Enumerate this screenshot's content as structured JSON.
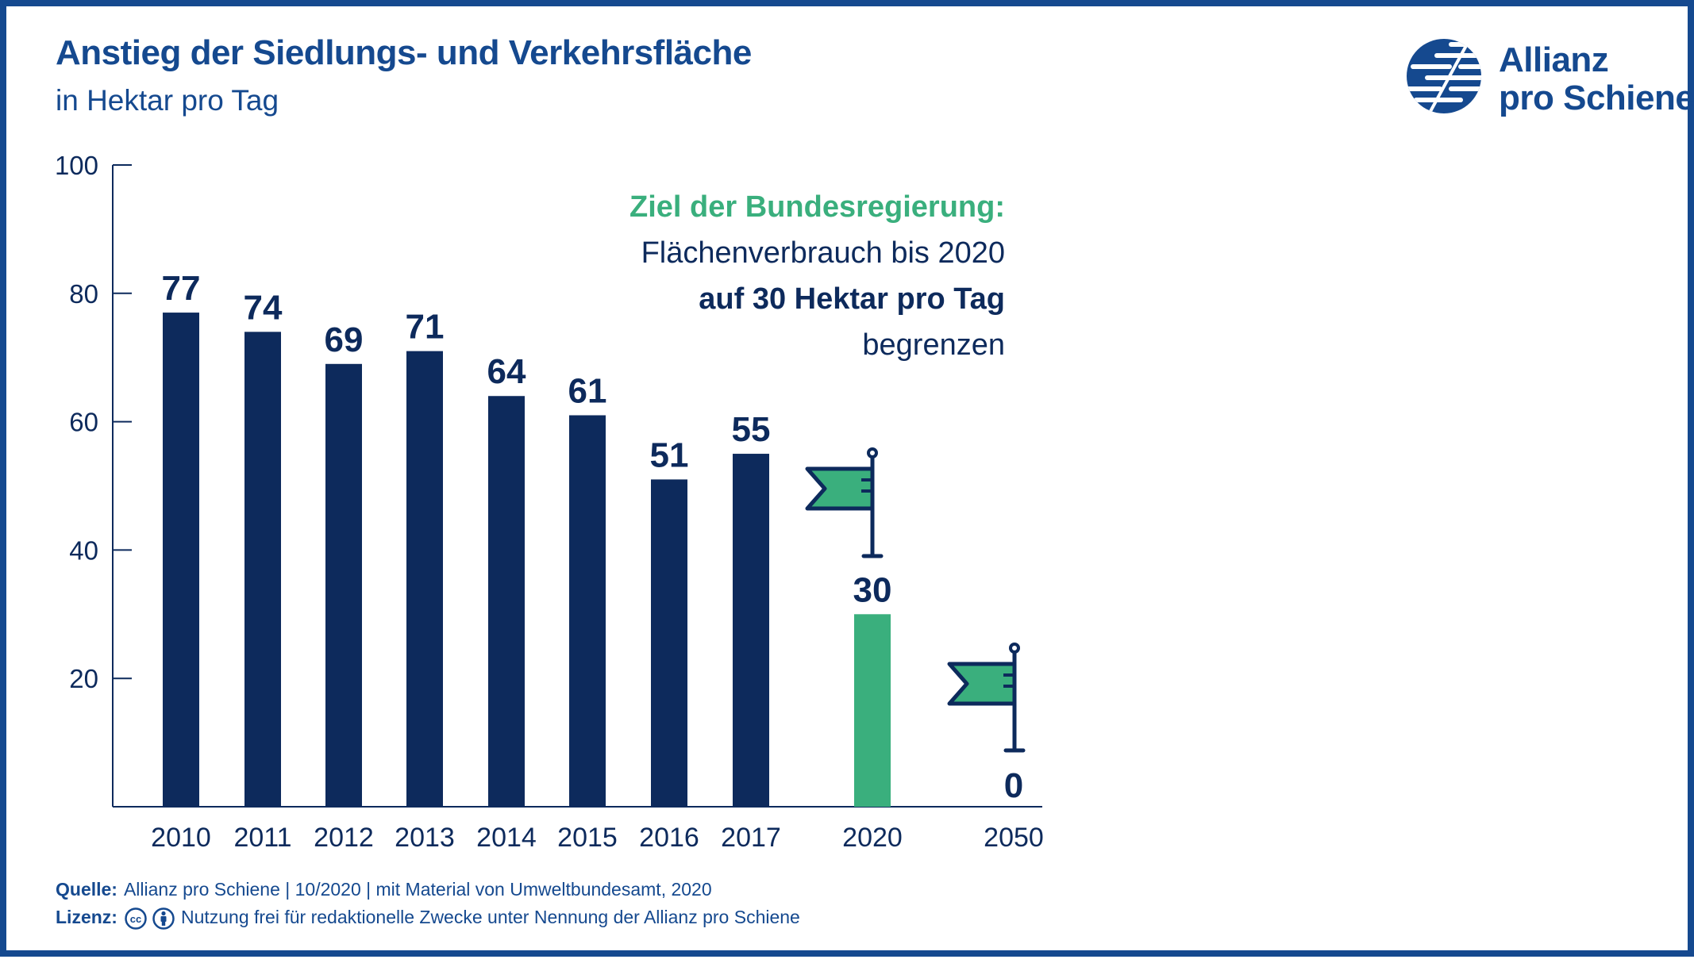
{
  "header": {
    "title": "Anstieg der Siedlungs- und Verkehrsfläche",
    "subtitle": "in Hektar pro Tag"
  },
  "logo": {
    "line1": "Allianz",
    "line2": "pro Schiene",
    "icon": "allianz-pro-schiene-logo-icon"
  },
  "annotation": {
    "line1": "Ziel der Bundesregierung:",
    "line2": "Flächenverbrauch bis 2020",
    "line3": "auf 30 Hektar pro Tag",
    "line4": "begrenzen"
  },
  "footer": {
    "source_label": "Quelle:",
    "source_text": "Allianz pro Schiene | 10/2020 | mit Material von Umweltbundesamt, 2020",
    "license_label": "Lizenz:",
    "license_text": "Nutzung frei für redaktionelle Zwecke unter Nennung der Allianz pro Schiene",
    "license_icons": [
      "cc-icon",
      "by-person-icon"
    ]
  },
  "colors": {
    "navy": "#0d2a5c",
    "brand_blue": "#15498f",
    "green": "#3aaf7d",
    "axis": "#0d2a5c"
  },
  "chart_data": {
    "type": "bar",
    "categories": [
      "2010",
      "2011",
      "2012",
      "2013",
      "2014",
      "2015",
      "2016",
      "2017",
      "2020",
      "2050"
    ],
    "values": [
      77,
      74,
      69,
      71,
      64,
      61,
      51,
      55,
      30,
      0
    ],
    "value_labels": [
      "77",
      "74",
      "69",
      "71",
      "64",
      "61",
      "51",
      "55",
      "30",
      "0"
    ],
    "bar_kinds": [
      "actual",
      "actual",
      "actual",
      "actual",
      "actual",
      "actual",
      "actual",
      "actual",
      "target",
      "target"
    ],
    "target_flags": [
      "2020",
      "2050"
    ],
    "y_ticks": [
      "20",
      "40",
      "60",
      "80",
      "100"
    ],
    "ylim": [
      0,
      100
    ],
    "grid": false,
    "xlabel": "",
    "ylabel": ""
  }
}
